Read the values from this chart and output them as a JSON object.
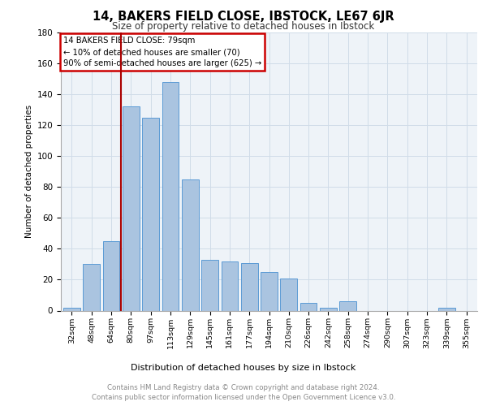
{
  "title": "14, BAKERS FIELD CLOSE, IBSTOCK, LE67 6JR",
  "subtitle": "Size of property relative to detached houses in Ibstock",
  "xlabel": "Distribution of detached houses by size in Ibstock",
  "ylabel": "Number of detached properties",
  "categories": [
    "32sqm",
    "48sqm",
    "64sqm",
    "80sqm",
    "97sqm",
    "113sqm",
    "129sqm",
    "145sqm",
    "161sqm",
    "177sqm",
    "194sqm",
    "210sqm",
    "226sqm",
    "242sqm",
    "258sqm",
    "274sqm",
    "290sqm",
    "307sqm",
    "323sqm",
    "339sqm",
    "355sqm"
  ],
  "values": [
    2,
    30,
    45,
    132,
    125,
    148,
    85,
    33,
    32,
    31,
    25,
    21,
    5,
    2,
    6,
    0,
    0,
    0,
    0,
    2,
    0
  ],
  "bar_color": "#aac4e0",
  "bar_edge_color": "#5b9bd5",
  "vline_color": "#aa0000",
  "annotation_text": "14 BAKERS FIELD CLOSE: 79sqm\n← 10% of detached houses are smaller (70)\n90% of semi-detached houses are larger (625) →",
  "annotation_box_color": "#ffffff",
  "annotation_box_edge_color": "#cc0000",
  "grid_color": "#d0dce8",
  "background_color": "#eef3f8",
  "footer_line1": "Contains HM Land Registry data © Crown copyright and database right 2024.",
  "footer_line2": "Contains public sector information licensed under the Open Government Licence v3.0.",
  "ylim": [
    0,
    180
  ],
  "yticks": [
    0,
    20,
    40,
    60,
    80,
    100,
    120,
    140,
    160,
    180
  ]
}
